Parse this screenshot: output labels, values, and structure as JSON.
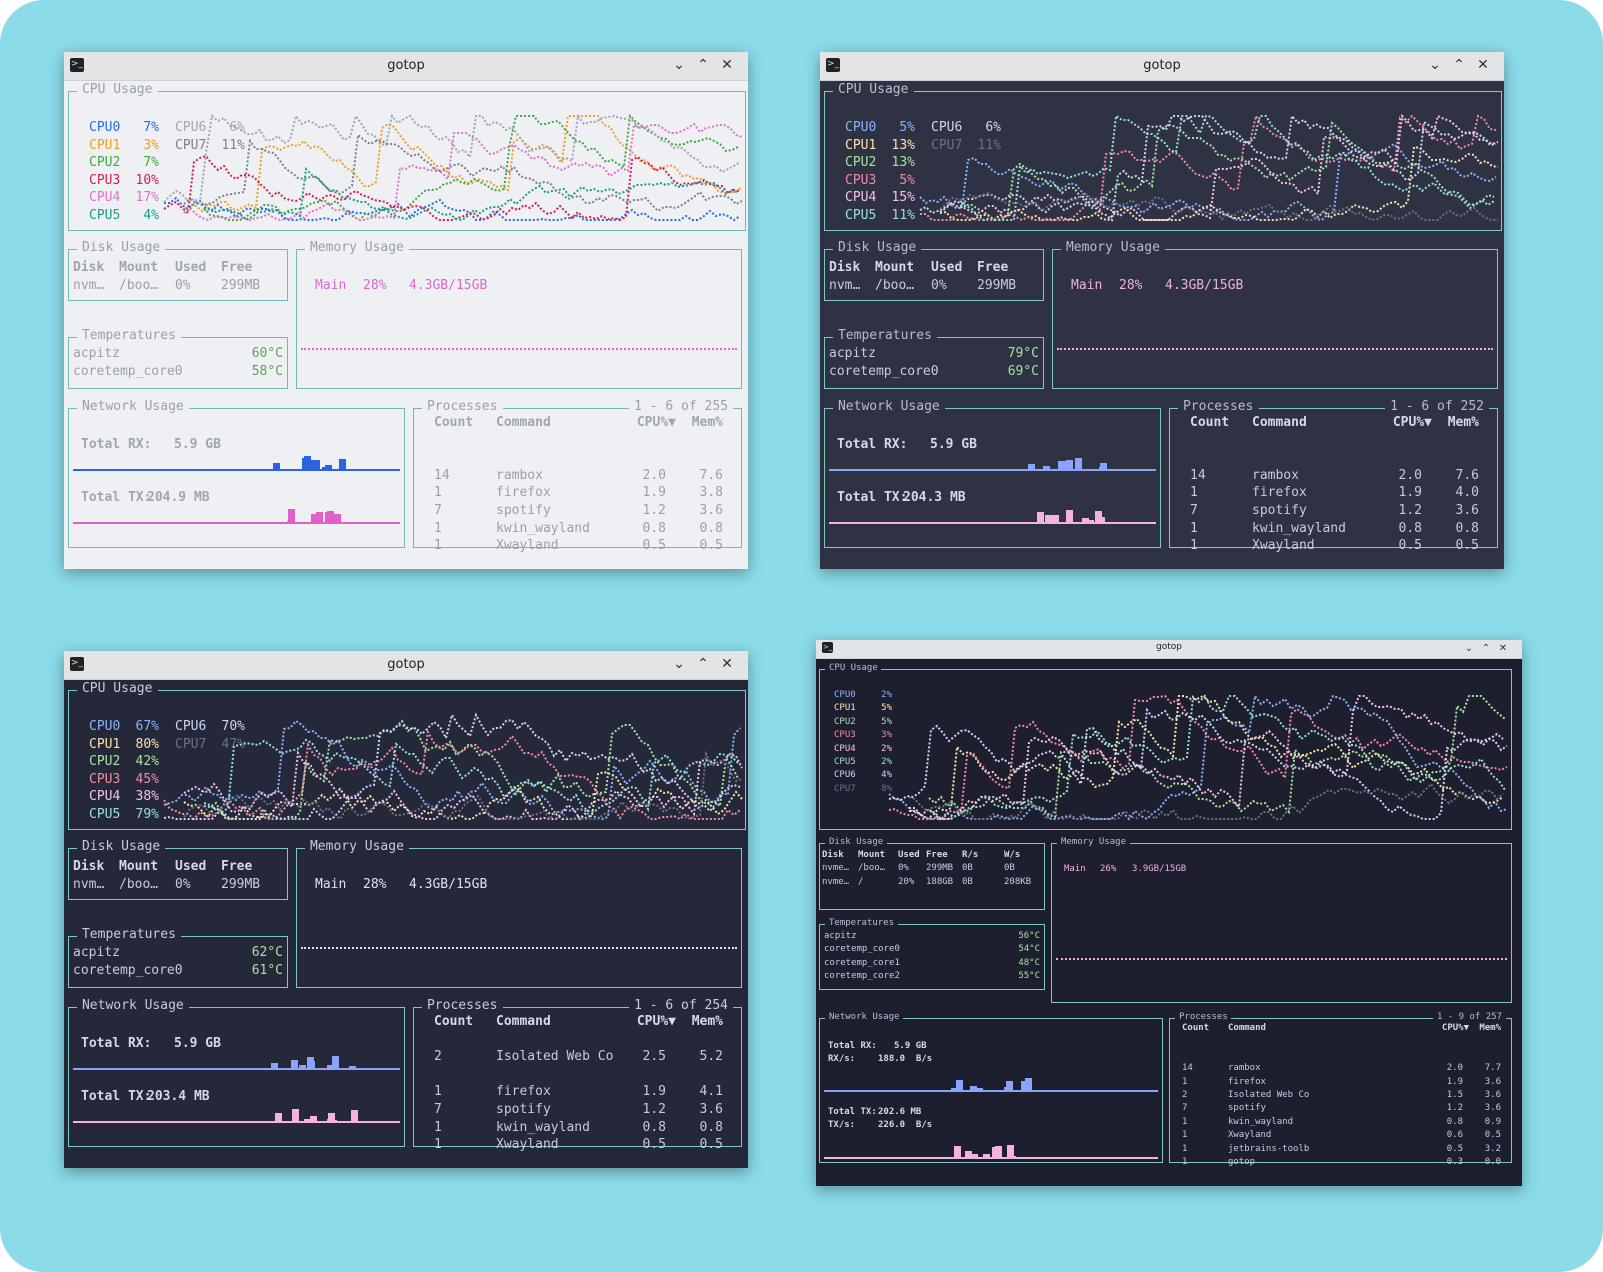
{
  "background": "#8bdbe9",
  "windows": [
    {
      "title": "gotop",
      "theme": "light",
      "colors": {
        "bg": "#eef0f4",
        "border": "#72b9b0",
        "title": "#9aa0aa",
        "text": "#9aa0aa",
        "header": "#a0a6b0",
        "temp": "#58a848",
        "rx": "#2a62e0",
        "tx": "#e060c8",
        "mem": "#e066c8"
      },
      "cpu_title": "CPU Usage",
      "cpus": [
        {
          "label": "CPU0",
          "value": "7%",
          "color": "#2a6ae8"
        },
        {
          "label": "CPU1",
          "value": "3%",
          "color": "#f0a020"
        },
        {
          "label": "CPU2",
          "value": "7%",
          "color": "#3fa83f"
        },
        {
          "label": "CPU3",
          "value": "10%",
          "color": "#d2204e"
        },
        {
          "label": "CPU4",
          "value": "17%",
          "color": "#e070c8"
        },
        {
          "label": "CPU5",
          "value": "4%",
          "color": "#1a9c8c"
        },
        {
          "label": "CPU6",
          "value": "6%",
          "color": "#a0a6b0"
        },
        {
          "label": "CPU7",
          "value": "11%",
          "color": "#7a808a"
        }
      ],
      "disk": {
        "title": "Disk Usage",
        "headers": [
          "Disk",
          "Mount",
          "Used",
          "Free"
        ],
        "rows": [
          [
            "nvm…",
            "/boo…",
            "0%",
            "299MB"
          ]
        ]
      },
      "temps": {
        "title": "Temperatures",
        "rows": [
          [
            "acpitz",
            "60°C"
          ],
          [
            "coretemp_core0",
            "58°C"
          ]
        ]
      },
      "memory": {
        "title": "Memory Usage",
        "label": "Main",
        "percent": "28%",
        "amount": "4.3GB/15GB"
      },
      "network": {
        "title": "Network Usage",
        "rx_label": "Total RX:",
        "rx": "5.9 GB",
        "tx_label": "Total TX:",
        "tx": "204.9 MB"
      },
      "processes": {
        "title": "Processes",
        "range": "1 - 6 of 255",
        "headers": [
          "Count",
          "Command",
          "CPU%▼",
          "Mem%"
        ],
        "rows": [
          [
            "",
            "",
            "",
            ""
          ],
          [
            "14",
            "rambox",
            "2.0",
            "7.6"
          ],
          [
            "1",
            "firefox",
            "1.9",
            "3.8"
          ],
          [
            "7",
            "spotify",
            "1.2",
            "3.6"
          ],
          [
            "1",
            "kwin_wayland",
            "0.8",
            "0.8"
          ],
          [
            "1",
            "Xwayland",
            "0.5",
            "0.5"
          ]
        ]
      }
    },
    {
      "title": "gotop",
      "theme": "dark",
      "colors": {
        "bg": "#2e3243",
        "border": "#7fc8be",
        "title": "#b7bdd0",
        "text": "#c6cbe0",
        "header": "#d5d9ea",
        "temp": "#a6e3a1",
        "rx": "#89a4fa",
        "tx": "#f5b2e0",
        "mem": "#f0b0de"
      },
      "cpu_title": "CPU Usage",
      "cpus": [
        {
          "label": "CPU0",
          "value": "5%",
          "color": "#89b4fa"
        },
        {
          "label": "CPU1",
          "value": "13%",
          "color": "#f9e2af"
        },
        {
          "label": "CPU2",
          "value": "13%",
          "color": "#a6e3a1"
        },
        {
          "label": "CPU3",
          "value": "5%",
          "color": "#f38ba8"
        },
        {
          "label": "CPU4",
          "value": "15%",
          "color": "#f5c2e7"
        },
        {
          "label": "CPU5",
          "value": "11%",
          "color": "#94e2d5"
        },
        {
          "label": "CPU6",
          "value": "6%",
          "color": "#cdd6f4"
        },
        {
          "label": "CPU7",
          "value": "11%",
          "color": "#6c7086"
        }
      ],
      "disk": {
        "title": "Disk Usage",
        "headers": [
          "Disk",
          "Mount",
          "Used",
          "Free"
        ],
        "rows": [
          [
            "nvm…",
            "/boo…",
            "0%",
            "299MB"
          ]
        ]
      },
      "temps": {
        "title": "Temperatures",
        "rows": [
          [
            "acpitz",
            "79°C"
          ],
          [
            "coretemp_core0",
            "69°C"
          ]
        ]
      },
      "memory": {
        "title": "Memory Usage",
        "label": "Main",
        "percent": "28%",
        "amount": "4.3GB/15GB"
      },
      "network": {
        "title": "Network Usage",
        "rx_label": "Total RX:",
        "rx": "5.9 GB",
        "tx_label": "Total TX:",
        "tx": "204.3 MB"
      },
      "processes": {
        "title": "Processes",
        "range": "1 - 6 of 252",
        "headers": [
          "Count",
          "Command",
          "CPU%▼",
          "Mem%"
        ],
        "rows": [
          [
            "",
            "",
            "",
            ""
          ],
          [
            "14",
            "rambox",
            "2.0",
            "7.6"
          ],
          [
            "1",
            "firefox",
            "1.9",
            "4.0"
          ],
          [
            "7",
            "spotify",
            "1.2",
            "3.6"
          ],
          [
            "1",
            "kwin_wayland",
            "0.8",
            "0.8"
          ],
          [
            "1",
            "Xwayland",
            "0.5",
            "0.5"
          ]
        ]
      }
    },
    {
      "title": "gotop",
      "theme": "dark",
      "colors": {
        "bg": "#252839",
        "border": "#7fc8be",
        "title": "#c6cbe0",
        "text": "#c6cbe0",
        "header": "#d5d9ea",
        "temp": "#a6e3a1",
        "rx": "#89a4fa",
        "tx": "#f5b2e0",
        "mem": "#e0e0f0"
      },
      "cpu_title": "CPU Usage",
      "cpus": [
        {
          "label": "CPU0",
          "value": "67%",
          "color": "#89b4fa"
        },
        {
          "label": "CPU1",
          "value": "80%",
          "color": "#f9e2af"
        },
        {
          "label": "CPU2",
          "value": "42%",
          "color": "#a6e3a1"
        },
        {
          "label": "CPU3",
          "value": "45%",
          "color": "#f38ba8"
        },
        {
          "label": "CPU4",
          "value": "38%",
          "color": "#f5c2e7"
        },
        {
          "label": "CPU5",
          "value": "79%",
          "color": "#94e2d5"
        },
        {
          "label": "CPU6",
          "value": "70%",
          "color": "#cdd6f4"
        },
        {
          "label": "CPU7",
          "value": "47%",
          "color": "#6c7086"
        }
      ],
      "disk": {
        "title": "Disk Usage",
        "headers": [
          "Disk",
          "Mount",
          "Used",
          "Free"
        ],
        "rows": [
          [
            "nvm…",
            "/boo…",
            "0%",
            "299MB"
          ]
        ]
      },
      "temps": {
        "title": "Temperatures",
        "rows": [
          [
            "acpitz",
            "62°C"
          ],
          [
            "coretemp_core0",
            "61°C"
          ]
        ]
      },
      "memory": {
        "title": "Memory Usage",
        "label": "Main",
        "percent": "28%",
        "amount": "4.3GB/15GB"
      },
      "network": {
        "title": "Network Usage",
        "rx_label": "Total RX:",
        "rx": "5.9 GB",
        "tx_label": "Total TX:",
        "tx": "203.4 MB"
      },
      "processes": {
        "title": "Processes",
        "range": "1 - 6 of 254",
        "headers": [
          "Count",
          "Command",
          "CPU%▼",
          "Mem%"
        ],
        "rows": [
          [
            "2",
            "Isolated Web Co",
            "2.5",
            "5.2"
          ],
          [
            "",
            "",
            "",
            ""
          ],
          [
            "1",
            "firefox",
            "1.9",
            "4.1"
          ],
          [
            "7",
            "spotify",
            "1.2",
            "3.6"
          ],
          [
            "1",
            "kwin_wayland",
            "0.8",
            "0.8"
          ],
          [
            "1",
            "Xwayland",
            "0.5",
            "0.5"
          ]
        ]
      }
    },
    {
      "title": "gotop",
      "theme": "dark",
      "colors": {
        "bg": "#1e1f2e",
        "border": "#7fc8be",
        "title": "#b7bdd0",
        "text": "#c6cbe0",
        "header": "#d5d9ea",
        "temp": "#a6e3a1",
        "rx": "#89a4fa",
        "tx": "#f5b2e0",
        "mem": "#f0b0de"
      },
      "cpu_title": "CPU Usage",
      "cpus": [
        {
          "label": "CPU0",
          "value": "2%",
          "color": "#89b4fa"
        },
        {
          "label": "CPU1",
          "value": "5%",
          "color": "#f9e2af"
        },
        {
          "label": "CPU2",
          "value": "5%",
          "color": "#a6e3a1"
        },
        {
          "label": "CPU3",
          "value": "3%",
          "color": "#f38ba8"
        },
        {
          "label": "CPU4",
          "value": "2%",
          "color": "#f5c2e7"
        },
        {
          "label": "CPU5",
          "value": "2%",
          "color": "#94e2d5"
        },
        {
          "label": "CPU6",
          "value": "4%",
          "color": "#cdd6f4"
        },
        {
          "label": "CPU7",
          "value": "8%",
          "color": "#6c7086"
        }
      ],
      "disk": {
        "title": "Disk Usage",
        "headers": [
          "Disk",
          "Mount",
          "Used",
          "Free",
          "R/s",
          "W/s"
        ],
        "rows": [
          [
            "nvme…",
            "/boo…",
            "0%",
            "299MB",
            "0B",
            "0B"
          ],
          [
            "nvme…",
            "/",
            "20%",
            "188GB",
            "0B",
            "208KB"
          ]
        ]
      },
      "temps": {
        "title": "Temperatures",
        "rows": [
          [
            "acpitz",
            "56°C"
          ],
          [
            "coretemp_core0",
            "54°C"
          ],
          [
            "coretemp_core1",
            "48°C"
          ],
          [
            "coretemp_core2",
            "55°C"
          ]
        ]
      },
      "memory": {
        "title": "Memory Usage",
        "label": "Main",
        "percent": "26%",
        "amount": "3.9GB/15GB"
      },
      "network": {
        "title": "Network Usage",
        "rx_label": "Total RX:",
        "rx": "5.9 GB",
        "rxs_label": "RX/s:",
        "rxs": "188.0  B/s",
        "tx_label": "Total TX:",
        "tx": "202.6 MB",
        "txs_label": "TX/s:",
        "txs": "226.0  B/s"
      },
      "processes": {
        "title": "Processes",
        "range": "1 - 9 of 257",
        "headers": [
          "Count",
          "Command",
          "CPU%▼",
          "Mem%"
        ],
        "rows": [
          [
            "",
            "",
            "",
            ""
          ],
          [
            "14",
            "rambox",
            "2.0",
            "7.7"
          ],
          [
            "1",
            "firefox",
            "1.9",
            "3.6"
          ],
          [
            "2",
            "Isolated Web Co",
            "1.5",
            "3.6"
          ],
          [
            "7",
            "spotify",
            "1.2",
            "3.6"
          ],
          [
            "1",
            "kwin_wayland",
            "0.8",
            "0.9"
          ],
          [
            "1",
            "Xwayland",
            "0.6",
            "0.5"
          ],
          [
            "1",
            "jetbrains-toolb",
            "0.5",
            "3.2"
          ],
          [
            "1",
            "gotop",
            "0.3",
            "0.0"
          ]
        ]
      }
    }
  ]
}
